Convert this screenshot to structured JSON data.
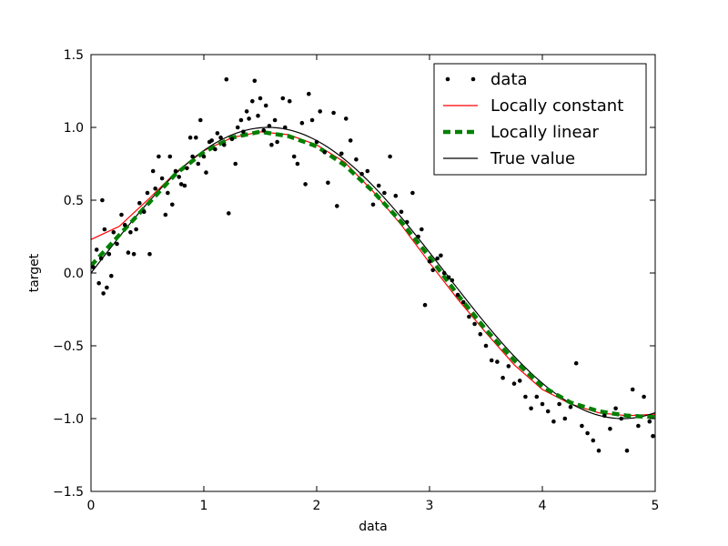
{
  "chart_data": {
    "type": "scatter",
    "title": "",
    "xlabel": "data",
    "ylabel": "target",
    "xlim": [
      0,
      5
    ],
    "ylim": [
      -1.5,
      1.5
    ],
    "x_ticks": [
      0,
      1,
      2,
      3,
      4,
      5
    ],
    "x_tick_labels": [
      "0",
      "1",
      "2",
      "3",
      "4",
      "5"
    ],
    "y_ticks": [
      1.5,
      1.0,
      0.5,
      0.0,
      -0.5,
      -1.0,
      -1.5
    ],
    "y_tick_labels": [
      "1.5",
      "1.0",
      "0.5",
      "0.0",
      "−0.5",
      "−1.0",
      "−1.5"
    ],
    "grid": false,
    "legend_position": "top-right",
    "series": [
      {
        "name": "data",
        "kind": "scatter",
        "color": "#000000",
        "points": [
          [
            0.02,
            0.04
          ],
          [
            0.05,
            0.16
          ],
          [
            0.07,
            -0.07
          ],
          [
            0.09,
            0.1
          ],
          [
            0.1,
            0.5
          ],
          [
            0.11,
            -0.14
          ],
          [
            0.12,
            0.3
          ],
          [
            0.14,
            -0.1
          ],
          [
            0.16,
            0.13
          ],
          [
            0.18,
            -0.02
          ],
          [
            0.2,
            0.28
          ],
          [
            0.23,
            0.2
          ],
          [
            0.27,
            0.4
          ],
          [
            0.3,
            0.33
          ],
          [
            0.33,
            0.14
          ],
          [
            0.35,
            0.28
          ],
          [
            0.38,
            0.13
          ],
          [
            0.4,
            0.3
          ],
          [
            0.43,
            0.48
          ],
          [
            0.47,
            0.42
          ],
          [
            0.5,
            0.55
          ],
          [
            0.52,
            0.13
          ],
          [
            0.55,
            0.7
          ],
          [
            0.57,
            0.58
          ],
          [
            0.6,
            0.8
          ],
          [
            0.63,
            0.65
          ],
          [
            0.66,
            0.4
          ],
          [
            0.68,
            0.55
          ],
          [
            0.7,
            0.8
          ],
          [
            0.72,
            0.47
          ],
          [
            0.75,
            0.7
          ],
          [
            0.78,
            0.66
          ],
          [
            0.8,
            0.61
          ],
          [
            0.83,
            0.6
          ],
          [
            0.85,
            0.72
          ],
          [
            0.88,
            0.93
          ],
          [
            0.9,
            0.8
          ],
          [
            0.93,
            0.93
          ],
          [
            0.95,
            0.75
          ],
          [
            0.97,
            1.05
          ],
          [
            1.0,
            0.8
          ],
          [
            1.02,
            0.69
          ],
          [
            1.05,
            0.9
          ],
          [
            1.07,
            0.91
          ],
          [
            1.1,
            0.85
          ],
          [
            1.12,
            0.96
          ],
          [
            1.15,
            0.93
          ],
          [
            1.18,
            0.88
          ],
          [
            1.2,
            1.33
          ],
          [
            1.22,
            0.41
          ],
          [
            1.25,
            0.92
          ],
          [
            1.28,
            0.75
          ],
          [
            1.3,
            1.0
          ],
          [
            1.33,
            1.05
          ],
          [
            1.35,
            0.97
          ],
          [
            1.38,
            1.11
          ],
          [
            1.4,
            1.06
          ],
          [
            1.43,
            1.18
          ],
          [
            1.45,
            1.32
          ],
          [
            1.48,
            1.08
          ],
          [
            1.5,
            1.2
          ],
          [
            1.53,
            0.98
          ],
          [
            1.55,
            1.15
          ],
          [
            1.58,
            1.01
          ],
          [
            1.6,
            0.88
          ],
          [
            1.63,
            1.05
          ],
          [
            1.65,
            0.9
          ],
          [
            1.7,
            1.2
          ],
          [
            1.72,
            1.0
          ],
          [
            1.76,
            1.18
          ],
          [
            1.8,
            0.8
          ],
          [
            1.83,
            0.75
          ],
          [
            1.87,
            1.03
          ],
          [
            1.9,
            0.61
          ],
          [
            1.93,
            1.23
          ],
          [
            1.96,
            1.05
          ],
          [
            2.0,
            0.9
          ],
          [
            2.03,
            1.11
          ],
          [
            2.07,
            0.83
          ],
          [
            2.1,
            0.62
          ],
          [
            2.15,
            1.1
          ],
          [
            2.18,
            0.46
          ],
          [
            2.22,
            0.82
          ],
          [
            2.26,
            1.06
          ],
          [
            2.3,
            0.91
          ],
          [
            2.35,
            0.78
          ],
          [
            2.4,
            0.68
          ],
          [
            2.45,
            0.7
          ],
          [
            2.5,
            0.47
          ],
          [
            2.55,
            0.6
          ],
          [
            2.6,
            0.55
          ],
          [
            2.65,
            0.8
          ],
          [
            2.7,
            0.53
          ],
          [
            2.75,
            0.42
          ],
          [
            2.8,
            0.35
          ],
          [
            2.85,
            0.55
          ],
          [
            2.9,
            0.25
          ],
          [
            2.93,
            0.3
          ],
          [
            2.96,
            -0.22
          ],
          [
            3.0,
            0.08
          ],
          [
            3.03,
            0.02
          ],
          [
            3.07,
            0.1
          ],
          [
            3.1,
            0.12
          ],
          [
            3.13,
            0.0
          ],
          [
            3.17,
            -0.03
          ],
          [
            3.2,
            -0.05
          ],
          [
            3.25,
            -0.15
          ],
          [
            3.3,
            -0.2
          ],
          [
            3.35,
            -0.3
          ],
          [
            3.4,
            -0.35
          ],
          [
            3.45,
            -0.42
          ],
          [
            3.5,
            -0.5
          ],
          [
            3.55,
            -0.6
          ],
          [
            3.6,
            -0.61
          ],
          [
            3.65,
            -0.72
          ],
          [
            3.7,
            -0.64
          ],
          [
            3.75,
            -0.76
          ],
          [
            3.8,
            -0.74
          ],
          [
            3.85,
            -0.85
          ],
          [
            3.9,
            -0.93
          ],
          [
            3.95,
            -0.85
          ],
          [
            4.0,
            -0.9
          ],
          [
            4.05,
            -0.95
          ],
          [
            4.1,
            -1.02
          ],
          [
            4.15,
            -0.9
          ],
          [
            4.2,
            -1.0
          ],
          [
            4.25,
            -0.92
          ],
          [
            4.3,
            -0.62
          ],
          [
            4.35,
            -1.05
          ],
          [
            4.4,
            -1.1
          ],
          [
            4.45,
            -1.15
          ],
          [
            4.5,
            -1.22
          ],
          [
            4.55,
            -0.98
          ],
          [
            4.6,
            -1.07
          ],
          [
            4.65,
            -0.93
          ],
          [
            4.7,
            -1.0
          ],
          [
            4.75,
            -1.22
          ],
          [
            4.8,
            -0.8
          ],
          [
            4.85,
            -1.05
          ],
          [
            4.9,
            -0.85
          ],
          [
            4.95,
            -1.02
          ],
          [
            4.98,
            -1.12
          ]
        ]
      },
      {
        "name": "Locally constant",
        "kind": "line",
        "color": "#ff0000",
        "style": "solid",
        "points": [
          [
            0.0,
            0.23
          ],
          [
            0.25,
            0.32
          ],
          [
            0.5,
            0.5
          ],
          [
            0.75,
            0.69
          ],
          [
            1.0,
            0.84
          ],
          [
            1.25,
            0.93
          ],
          [
            1.5,
            0.97
          ],
          [
            1.75,
            0.95
          ],
          [
            2.0,
            0.88
          ],
          [
            2.25,
            0.76
          ],
          [
            2.5,
            0.56
          ],
          [
            2.75,
            0.33
          ],
          [
            3.0,
            0.07
          ],
          [
            3.25,
            -0.18
          ],
          [
            3.5,
            -0.41
          ],
          [
            3.75,
            -0.63
          ],
          [
            4.0,
            -0.8
          ],
          [
            4.25,
            -0.9
          ],
          [
            4.5,
            -0.96
          ],
          [
            4.75,
            -0.98
          ],
          [
            5.0,
            -0.97
          ]
        ]
      },
      {
        "name": "Locally linear",
        "kind": "line",
        "color": "#008000",
        "style": "dashed",
        "points": [
          [
            0.0,
            0.05
          ],
          [
            0.25,
            0.26
          ],
          [
            0.5,
            0.47
          ],
          [
            0.75,
            0.68
          ],
          [
            1.0,
            0.83
          ],
          [
            1.25,
            0.93
          ],
          [
            1.5,
            0.97
          ],
          [
            1.75,
            0.94
          ],
          [
            2.0,
            0.87
          ],
          [
            2.25,
            0.74
          ],
          [
            2.5,
            0.56
          ],
          [
            2.75,
            0.35
          ],
          [
            3.0,
            0.11
          ],
          [
            3.25,
            -0.15
          ],
          [
            3.5,
            -0.39
          ],
          [
            3.75,
            -0.6
          ],
          [
            4.0,
            -0.78
          ],
          [
            4.25,
            -0.89
          ],
          [
            4.5,
            -0.95
          ],
          [
            4.75,
            -0.98
          ],
          [
            5.0,
            -0.99
          ]
        ]
      },
      {
        "name": "True value",
        "kind": "line",
        "color": "#000000",
        "style": "solid",
        "function": "sin"
      }
    ]
  }
}
